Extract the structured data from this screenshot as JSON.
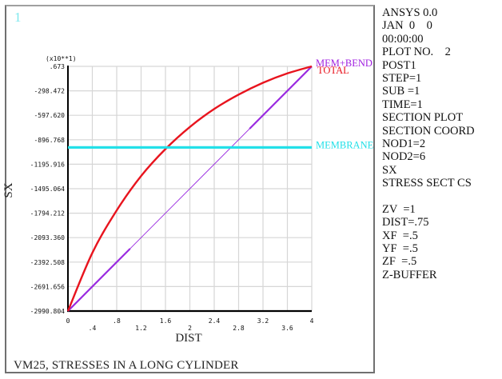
{
  "window": {
    "number": "1"
  },
  "chart_data": {
    "type": "line",
    "title": "VM25, STRESSES IN A LONG CYLINDER",
    "xlabel": "DIST",
    "ylabel": "SX",
    "y_multiplier": "(x10**1)",
    "xlim": [
      0,
      4
    ],
    "ylim": [
      -2990.804,
      0.673
    ],
    "grid": true,
    "x_ticks": [
      "0",
      ".4",
      ".8",
      "1.2",
      "1.6",
      "2",
      "2.4",
      "2.8",
      "3.2",
      "3.6",
      "4"
    ],
    "y_ticks": [
      ".673",
      "-298.472",
      "-597.620",
      "-896.768",
      "-1195.916",
      "-1495.064",
      "-1794.212",
      "-2093.360",
      "-2392.508",
      "-2691.656",
      "-2990.804"
    ],
    "legend_position": "right",
    "series": [
      {
        "name": "MEMBRANE",
        "color": "#22e0e8",
        "x": [
          0,
          4
        ],
        "y": [
          -990,
          -990
        ]
      },
      {
        "name": "MEM+BEND",
        "color": "#9a2be0",
        "x": [
          0,
          4
        ],
        "y": [
          -2990.804,
          0.673
        ]
      },
      {
        "name": "TOTAL",
        "color": "#e8141e",
        "x": [
          0,
          0.4,
          0.8,
          1.2,
          1.6,
          2.0,
          2.4,
          2.8,
          3.2,
          3.6,
          4.0
        ],
        "y": [
          -2990.804,
          -2280,
          -1760,
          -1340,
          -1010,
          -740,
          -520,
          -345,
          -200,
          -85,
          0.673
        ]
      }
    ]
  },
  "info_panel": {
    "lines": [
      "ANSYS 0.0",
      "JAN  0    0",
      "00:00:00",
      "PLOT NO.    2",
      "POST1",
      "STEP=1",
      "SUB =1",
      "TIME=1",
      "SECTION PLOT",
      "SECTION COORD",
      "NOD1=2",
      "NOD2=6",
      "SX",
      "STRESS SECT CS",
      "",
      "ZV  =1",
      "DIST=.75",
      "XF  =.5",
      "YF  =.5",
      "ZF  =.5",
      "Z-BUFFER"
    ]
  },
  "footer": {
    "title": "VM25, STRESSES IN A LONG CYLINDER"
  }
}
